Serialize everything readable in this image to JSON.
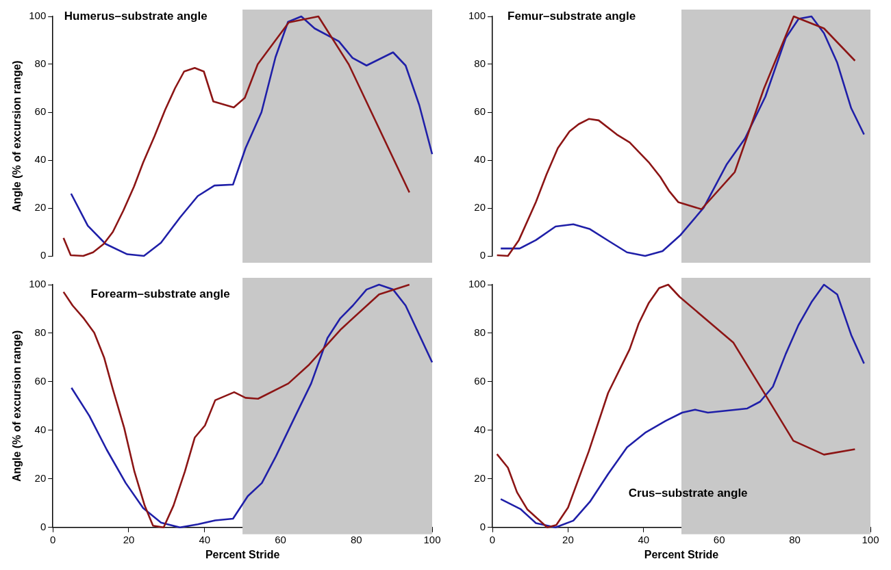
{
  "chart_data": [
    {
      "type": "line",
      "title": "Humerus–substrate angle",
      "ylabel": "Angle (% of excursion range)",
      "xlim": [
        0,
        100
      ],
      "ylim": [
        0,
        100
      ],
      "yticks": [
        0,
        20,
        40,
        60,
        80,
        100
      ],
      "tick_labels": "y",
      "grid": false,
      "legend": false,
      "bands": [
        {
          "axis": "x",
          "from": 50,
          "to": 100,
          "color": "#c8c8c8"
        }
      ],
      "series": [
        {
          "color": "#8c1515",
          "x": [
            2.8,
            4.7,
            8,
            10.6,
            13.4,
            15.8,
            18.6,
            21.4,
            23.8,
            26.8,
            29.6,
            32.2,
            34.6,
            37.4,
            39.8,
            42.3,
            47.7,
            50.6,
            54,
            62.2,
            70,
            78,
            94
          ],
          "values": [
            7.5,
            0.3,
            0,
            1.5,
            5,
            10,
            19,
            29,
            39,
            50,
            61,
            70,
            77,
            78.5,
            77,
            64.5,
            62,
            66,
            80,
            97.5,
            100,
            80,
            26.5
          ]
        },
        {
          "color": "#1f1fa8",
          "x": [
            4.8,
            9.2,
            13.9,
            19.6,
            24,
            28.5,
            33.5,
            38.2,
            42.6,
            47.5,
            50.8,
            55,
            58.7,
            62,
            65.5,
            69,
            75.4,
            79,
            82.7,
            89.7,
            93,
            96.6,
            100
          ],
          "values": [
            26,
            12.6,
            5,
            0.7,
            0,
            5.5,
            16,
            25,
            29.4,
            29.8,
            45,
            60,
            83,
            97.7,
            100,
            95,
            89.6,
            82.7,
            79.5,
            85,
            79.5,
            63,
            42.5
          ]
        }
      ]
    },
    {
      "type": "line",
      "title": "Femur–substrate angle",
      "xlim": [
        0,
        100
      ],
      "ylim": [
        0,
        100
      ],
      "yticks": [
        0,
        20,
        40,
        60,
        80,
        100
      ],
      "tick_labels": "y",
      "grid": false,
      "legend": false,
      "bands": [
        {
          "axis": "x",
          "from": 50,
          "to": 100,
          "color": "#c8c8c8"
        }
      ],
      "series": [
        {
          "color": "#8c1515",
          "x": [
            1.2,
            4.1,
            7,
            11.5,
            14.3,
            17.3,
            20.4,
            22.8,
            25.5,
            28.1,
            32.9,
            36.3,
            41.3,
            44.4,
            46.7,
            49.2,
            55.3,
            64.1,
            71.8,
            79.7,
            87.7,
            95.9
          ],
          "values": [
            0.3,
            0,
            6.6,
            22.5,
            34,
            45,
            52,
            55,
            57.2,
            56.6,
            50.7,
            47.4,
            39.2,
            33,
            27.2,
            22.4,
            19.5,
            35,
            69.8,
            100,
            95,
            81.5
          ]
        },
        {
          "color": "#1f1fa8",
          "x": [
            2.2,
            7.2,
            11.5,
            16.7,
            21.4,
            25.8,
            31,
            35.6,
            40.4,
            45,
            49.8,
            55.9,
            62,
            66.8,
            72.2,
            77.6,
            81,
            84.4,
            87.7,
            91.2,
            94.9,
            98.3
          ],
          "values": [
            3.1,
            3.1,
            6.6,
            12.3,
            13.2,
            11.2,
            6,
            1.5,
            0,
            2,
            8.8,
            20.2,
            38.3,
            49,
            66.5,
            91,
            99,
            100,
            93,
            80.7,
            61.7,
            50.7
          ]
        }
      ]
    },
    {
      "type": "line",
      "title": "Forearm–substrate angle",
      "xlabel": "Percent Stride",
      "ylabel": "Angle (% of excursion range)",
      "xlim": [
        0,
        100
      ],
      "ylim": [
        0,
        100
      ],
      "xticks": [
        0,
        20,
        40,
        60,
        80,
        100
      ],
      "yticks": [
        0,
        20,
        40,
        60,
        80,
        100
      ],
      "grid": false,
      "legend": false,
      "bands": [
        {
          "axis": "x",
          "from": 50,
          "to": 100,
          "color": "#c8c8c8"
        }
      ],
      "series": [
        {
          "color": "#8c1515",
          "x": [
            2.8,
            5.2,
            8.2,
            10.9,
            13.5,
            15.8,
            18.8,
            21.5,
            24.2,
            26.4,
            29.2,
            31.8,
            34.8,
            37.4,
            40.1,
            42.8,
            47.8,
            50.8,
            54.1,
            62.1,
            67.4,
            76,
            86,
            94
          ],
          "values": [
            97,
            91.4,
            86,
            80.2,
            70,
            57,
            41,
            23,
            9,
            0.7,
            0,
            9,
            23,
            37,
            42,
            52.4,
            55.7,
            53.4,
            53,
            59.3,
            66.8,
            81.7,
            96,
            100
          ]
        },
        {
          "color": "#1f1fa8",
          "x": [
            4.9,
            9.6,
            14.2,
            19.2,
            23.8,
            28.5,
            33.5,
            38.2,
            42.8,
            47.5,
            51.4,
            55.1,
            58.8,
            64.1,
            68.1,
            72.4,
            75.7,
            79.1,
            82.7,
            86,
            89.7,
            93,
            100
          ],
          "values": [
            57.5,
            46,
            32,
            18.3,
            8,
            2,
            0,
            1.3,
            2.9,
            3.6,
            12.9,
            18.3,
            29.3,
            46.5,
            59.3,
            78,
            86,
            91.4,
            98,
            100,
            98,
            91.4,
            68
          ]
        }
      ]
    },
    {
      "type": "line",
      "title": "Crus–substrate angle",
      "xlabel": "Percent Stride",
      "xlim": [
        0,
        100
      ],
      "ylim": [
        0,
        100
      ],
      "xticks": [
        0,
        20,
        40,
        60,
        80,
        100
      ],
      "yticks": [
        0,
        20,
        40,
        60,
        80,
        100
      ],
      "grid": false,
      "legend": false,
      "bands": [
        {
          "axis": "x",
          "from": 50,
          "to": 100,
          "color": "#c8c8c8"
        }
      ],
      "series": [
        {
          "color": "#8c1515",
          "x": [
            1.2,
            4.1,
            6.5,
            9.2,
            14.5,
            16.9,
            20,
            25.5,
            30.6,
            36.3,
            38.7,
            41.3,
            44.1,
            46.5,
            49.5,
            63.7,
            71.5,
            79.6,
            87.7,
            95.9
          ],
          "values": [
            30.2,
            24.6,
            14.5,
            7.5,
            0,
            1,
            8.2,
            31.4,
            55.4,
            73.4,
            84,
            92.3,
            98.6,
            100,
            95,
            76.2,
            56.4,
            35.7,
            30,
            32.2
          ]
        },
        {
          "color": "#1f1fa8",
          "x": [
            2.2,
            7.4,
            11.5,
            16.7,
            21.4,
            25.8,
            30.6,
            35.6,
            40.4,
            45.8,
            50.2,
            53.6,
            57,
            67.4,
            70.8,
            74.2,
            77.6,
            81,
            84.4,
            87.7,
            91.2,
            94.9,
            98.3
          ],
          "values": [
            11.7,
            7.6,
            1.8,
            0,
            2.8,
            10.6,
            22,
            33,
            39,
            43.9,
            47.3,
            48.5,
            47.3,
            49,
            51.8,
            58,
            71.5,
            83.5,
            92.8,
            100,
            96,
            79.3,
            67.5
          ]
        }
      ]
    }
  ]
}
